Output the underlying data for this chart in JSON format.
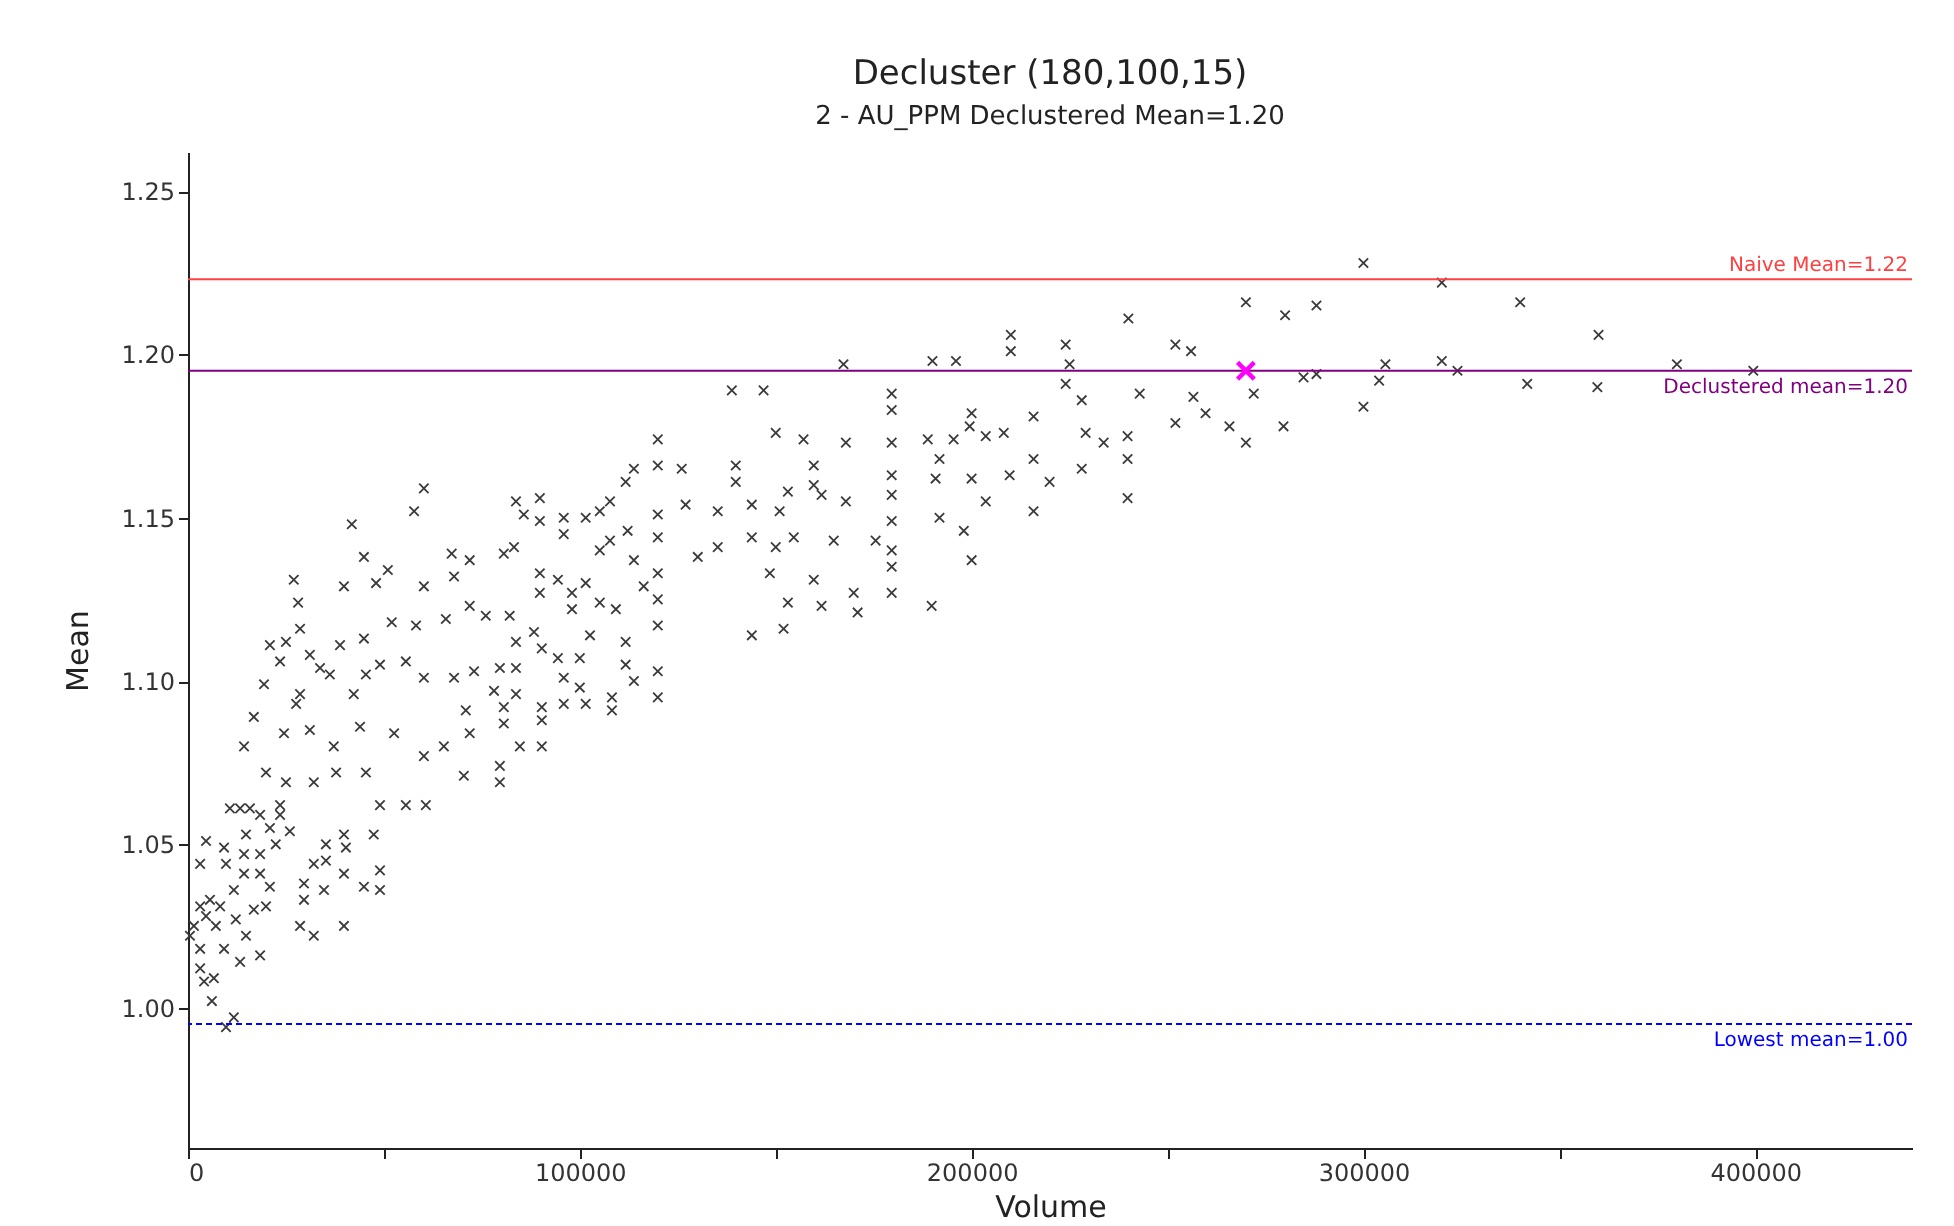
{
  "chart_data": {
    "type": "scatter",
    "title": "Decluster (180,100,15)",
    "subtitle": "2 - AU_PPM Declustered Mean=1.20",
    "xlabel": "Volume",
    "ylabel": "Mean",
    "marker": "cross",
    "xlim": [
      0,
      440000
    ],
    "ylim": [
      0.957,
      1.262
    ],
    "xticks": [
      0,
      {
        "value": 50000,
        "label": null
      },
      100000,
      {
        "value": 150000,
        "label": null
      },
      200000,
      {
        "value": 250000,
        "label": null
      },
      300000,
      {
        "value": 350000,
        "label": null
      },
      400000
    ],
    "yticks": [
      {
        "value": 1.0,
        "label": "1.00"
      },
      1.05,
      {
        "value": 1.1,
        "label": "1.10"
      },
      1.15,
      {
        "value": 1.2,
        "label": "1.20"
      },
      1.25
    ],
    "ref_lines": [
      {
        "axis": "y",
        "value": 1.223,
        "label": "Naive Mean=1.22",
        "color": "#ff4040",
        "line_style": "solid"
      },
      {
        "axis": "y",
        "value": 1.195,
        "label": "Declustered mean=1.20",
        "color": "#800080",
        "line_style": "solid"
      },
      {
        "axis": "y",
        "value": 0.995,
        "label": "Lowest mean=1.00",
        "color": "#0000ff",
        "line_style": "dashed"
      }
    ],
    "series": [
      {
        "color": "#3a3a3a",
        "x": [
          300000,
          320000,
          340000,
          360000,
          380000,
          399500,
          270000,
          280000,
          288000,
          240000,
          210000,
          210000,
          224000,
          252000,
          256000,
          225000,
          224000,
          305600,
          320000,
          324000,
          341800,
          359700,
          284700,
          288000,
          304000,
          300000,
          272000,
          279600,
          270000,
          265800,
          259700,
          256600,
          252000,
          242900,
          239800,
          239800,
          239800,
          233700,
          229100,
          228100,
          228100,
          215800,
          215800,
          215800,
          219900,
          209700,
          208200,
          146900,
          119900,
          119900,
          150000,
          157100,
          167900,
          179600,
          179600,
          179600,
          179600,
          179600,
          179600,
          179600,
          179600,
          179600,
          188800,
          195400,
          200000,
          199500,
          203600,
          203600,
          200000,
          191800,
          190800,
          191800,
          198000,
          200000,
          189800,
          175500,
          170900,
          169900,
          167900,
          164800,
          161700,
          159700,
          159700,
          159700,
          161700,
          153100,
          154600,
          150000,
          151000,
          148500,
          153100,
          152000,
          143900,
          143900,
          143900,
          139800,
          139800,
          135200,
          135200,
          127000,
          126000,
          130100,
          119900,
          119900,
          119900,
          119900,
          119900,
          119900,
          119900,
          113800,
          111700,
          107700,
          112200,
          113800,
          107700,
          105100,
          101500,
          105100,
          109200,
          116300,
          102600,
          111700,
          111700,
          113800,
          108200,
          108200,
          101500,
          95900,
          100000,
          95900,
          100000,
          94400,
          90300,
          83700,
          79600,
          90300,
          90300,
          90300,
          84700,
          80600,
          83700,
          88300,
          82100,
          89800,
          89800,
          94400,
          98000,
          98000,
          83700,
          89800,
          85700,
          89800,
          95900,
          95900,
          101500,
          105100,
          80600,
          83200,
          79600,
          79600,
          138800,
          167300,
          190000,
          196000,
          41800,
          57700,
          60200,
          27000,
          28100,
          44900,
          51000,
          48000,
          39800,
          60200,
          67300,
          67900,
          71900,
          52000,
          58200,
          65800,
          71900,
          76000,
          83700,
          28600,
          25000,
          20900,
          23500,
          44900,
          38800,
          31100,
          33700,
          28600,
          19400,
          27600,
          36200,
          45400,
          42300,
          49000,
          55600,
          60200,
          67900,
          73000,
          78100,
          71900,
          70900,
          80600,
          16800,
          14300,
          24500,
          31100,
          37200,
          43900,
          52600,
          60200,
          65300,
          70400,
          60700,
          55600,
          49000,
          45400,
          37800,
          32100,
          25000,
          19900,
          10700,
          13300,
          15800,
          18400,
          23500,
          20900,
          14800,
          26000,
          4600,
          9200,
          3100,
          9700,
          14300,
          18400,
          22400,
          14300,
          18400,
          20900,
          11700,
          5600,
          3100,
          8200,
          1500,
          4600,
          500,
          7100,
          12200,
          16800,
          19900,
          14800,
          3100,
          9200,
          18400,
          13300,
          3100,
          6600,
          4100,
          6100,
          9700,
          11700,
          32100,
          35200,
          34700,
          29600,
          29600,
          32100,
          28600,
          39800,
          39800,
          49000,
          47400,
          39800,
          40300,
          44900,
          35200,
          49000,
          23500
        ],
        "values": [
          1.228,
          1.222,
          1.216,
          1.206,
          1.197,
          1.195,
          1.216,
          1.212,
          1.215,
          1.211,
          1.206,
          1.201,
          1.203,
          1.203,
          1.201,
          1.197,
          1.191,
          1.197,
          1.198,
          1.195,
          1.191,
          1.19,
          1.193,
          1.194,
          1.192,
          1.184,
          1.188,
          1.178,
          1.173,
          1.178,
          1.182,
          1.187,
          1.179,
          1.188,
          1.175,
          1.168,
          1.156,
          1.173,
          1.176,
          1.165,
          1.186,
          1.181,
          1.168,
          1.152,
          1.161,
          1.163,
          1.176,
          1.189,
          1.174,
          1.166,
          1.176,
          1.174,
          1.173,
          1.188,
          1.183,
          1.173,
          1.163,
          1.157,
          1.149,
          1.14,
          1.135,
          1.127,
          1.174,
          1.174,
          1.182,
          1.178,
          1.175,
          1.155,
          1.162,
          1.168,
          1.162,
          1.15,
          1.146,
          1.137,
          1.123,
          1.143,
          1.121,
          1.127,
          1.155,
          1.143,
          1.123,
          1.131,
          1.166,
          1.16,
          1.157,
          1.158,
          1.144,
          1.141,
          1.152,
          1.133,
          1.124,
          1.116,
          1.154,
          1.144,
          1.114,
          1.166,
          1.161,
          1.152,
          1.141,
          1.154,
          1.165,
          1.138,
          1.151,
          1.144,
          1.133,
          1.125,
          1.117,
          1.103,
          1.095,
          1.165,
          1.161,
          1.155,
          1.146,
          1.137,
          1.143,
          1.14,
          1.13,
          1.124,
          1.122,
          1.129,
          1.114,
          1.112,
          1.105,
          1.1,
          1.095,
          1.091,
          1.093,
          1.093,
          1.098,
          1.101,
          1.107,
          1.107,
          1.11,
          1.104,
          1.104,
          1.092,
          1.088,
          1.08,
          1.08,
          1.087,
          1.096,
          1.115,
          1.12,
          1.127,
          1.133,
          1.131,
          1.127,
          1.122,
          1.155,
          1.156,
          1.151,
          1.149,
          1.15,
          1.145,
          1.15,
          1.152,
          1.139,
          1.141,
          1.074,
          1.069,
          1.189,
          1.197,
          1.198,
          1.198,
          1.148,
          1.152,
          1.159,
          1.131,
          1.124,
          1.138,
          1.134,
          1.13,
          1.129,
          1.129,
          1.139,
          1.132,
          1.137,
          1.118,
          1.117,
          1.119,
          1.123,
          1.12,
          1.112,
          1.116,
          1.112,
          1.111,
          1.106,
          1.113,
          1.111,
          1.108,
          1.104,
          1.096,
          1.099,
          1.093,
          1.102,
          1.102,
          1.096,
          1.105,
          1.106,
          1.101,
          1.101,
          1.103,
          1.097,
          1.084,
          1.091,
          1.092,
          1.089,
          1.08,
          1.084,
          1.085,
          1.08,
          1.086,
          1.084,
          1.077,
          1.08,
          1.071,
          1.062,
          1.062,
          1.062,
          1.072,
          1.072,
          1.069,
          1.069,
          1.072,
          1.061,
          1.061,
          1.061,
          1.059,
          1.059,
          1.055,
          1.053,
          1.054,
          1.051,
          1.049,
          1.044,
          1.044,
          1.047,
          1.047,
          1.05,
          1.041,
          1.041,
          1.037,
          1.036,
          1.033,
          1.031,
          1.031,
          1.025,
          1.028,
          1.022,
          1.025,
          1.027,
          1.03,
          1.031,
          1.022,
          1.018,
          1.018,
          1.016,
          1.014,
          1.012,
          1.009,
          1.008,
          1.002,
          0.994,
          0.997,
          1.044,
          1.045,
          1.036,
          1.038,
          1.033,
          1.022,
          1.025,
          1.025,
          1.041,
          1.042,
          1.053,
          1.053,
          1.049,
          1.037,
          1.05,
          1.036,
          1.062
        ]
      },
      {
        "color": "#ff00ff",
        "x": [
          270000
        ],
        "values": [
          1.195
        ]
      }
    ]
  }
}
